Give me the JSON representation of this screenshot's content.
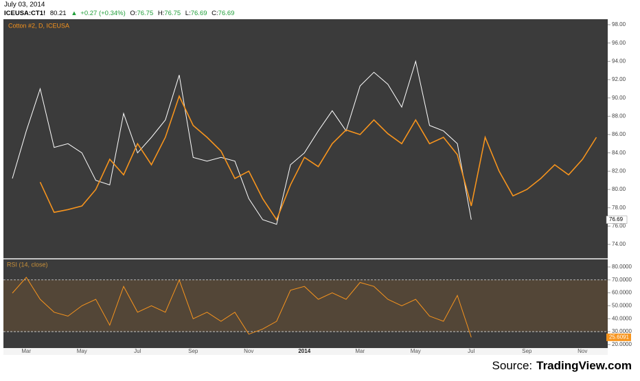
{
  "chart_data": {
    "type": "line",
    "header": {
      "date": "July 03, 2014",
      "symbol": "ICEUSA:CT1!",
      "price": "80.21",
      "change": "+0.27 (+0.34%)",
      "open_label": "O:",
      "open": "76.75",
      "high_label": "H:",
      "high": "76.75",
      "low_label": "L:",
      "low": "76.69",
      "close_label": "C:",
      "close": "76.69"
    },
    "source": "Source:",
    "source_site": "TradingView.com",
    "categories": [
      null,
      "Mar",
      null,
      null,
      null,
      "May",
      null,
      null,
      null,
      "Jul",
      null,
      null,
      null,
      "Sep",
      null,
      null,
      null,
      "Nov",
      null,
      null,
      null,
      "2014",
      null,
      null,
      null,
      "Mar",
      null,
      null,
      null,
      "May",
      null,
      null,
      null,
      "Jul",
      null,
      null,
      null,
      "Sep",
      null,
      null,
      null,
      "Nov",
      null
    ],
    "series": [
      {
        "name": "Cotton #2, D, ICEUSA",
        "color": "#f7941d",
        "values": [
          null,
          null,
          80.8,
          77.5,
          77.8,
          78.2,
          80,
          83.3,
          81.6,
          85,
          82.7,
          85.7,
          90.2,
          87,
          85.7,
          84.2,
          81.2,
          82,
          79,
          76.7,
          80.5,
          83.5,
          82.5,
          85,
          86.5,
          86,
          87.6,
          86.1,
          85,
          87.6,
          85,
          85.7,
          83.8,
          78.2,
          85.7,
          82,
          79.3,
          80,
          81.2,
          82.7,
          81.6,
          83.3,
          85.7
        ]
      },
      {
        "color": "#ffffff",
        "values": [
          81.2,
          86.4,
          91,
          84.6,
          85,
          84,
          81,
          80.5,
          88.3,
          84,
          85.7,
          87.6,
          92.5,
          83.5,
          83.1,
          83.5,
          83.1,
          79,
          76.7,
          76.2,
          82.7,
          84,
          86.4,
          88.6,
          86.4,
          91.3,
          92.8,
          91.5,
          89,
          94,
          87,
          86.4,
          85,
          76.7,
          null,
          null,
          null,
          null,
          null,
          null,
          null,
          null,
          null
        ]
      }
    ],
    "last_label": "76.69",
    "last_value": 76.69,
    "ylim": [
      72.5,
      98.6
    ],
    "yticks": [
      {
        "value": 74,
        "label": "74.00"
      },
      {
        "value": 76,
        "label": "76.00"
      },
      {
        "value": 78,
        "label": "78.00"
      },
      {
        "value": 80,
        "label": "80.00"
      },
      {
        "value": 82,
        "label": "82.00"
      },
      {
        "value": 84,
        "label": "84.00"
      },
      {
        "value": 86,
        "label": "86.00"
      },
      {
        "value": 88,
        "label": "88.00"
      },
      {
        "value": 90,
        "label": "90.00"
      },
      {
        "value": 92,
        "label": "92.00"
      },
      {
        "value": 94,
        "label": "94.00"
      },
      {
        "value": 96,
        "label": "96.00"
      },
      {
        "value": 98,
        "label": "98.00"
      }
    ],
    "rsi": {
      "title": "RSI (14, close)",
      "color": "#f7941d",
      "values": [
        59.8,
        72,
        55,
        45,
        42,
        50,
        55,
        35,
        65,
        45,
        50,
        45,
        70,
        40,
        45,
        38,
        45,
        28,
        32,
        38,
        62,
        65,
        55,
        60,
        55,
        68,
        65,
        55,
        50,
        55,
        42,
        38,
        58,
        25.6,
        null,
        null,
        null,
        null,
        null,
        null,
        null,
        null,
        null
      ],
      "last_label": "25.6091",
      "last_value": 25.6091,
      "bands": [
        30,
        70
      ],
      "ylim": [
        17.3,
        85.8
      ],
      "yticks": [
        {
          "value": 20,
          "label": "20.0000"
        },
        {
          "value": 30,
          "label": "30.0000"
        },
        {
          "value": 40,
          "label": "40.0000"
        },
        {
          "value": 50,
          "label": "50.0000"
        },
        {
          "value": 60,
          "label": "60.0000"
        },
        {
          "value": 70,
          "label": "70.0000"
        },
        {
          "value": 80,
          "label": "80.0000"
        }
      ]
    }
  }
}
